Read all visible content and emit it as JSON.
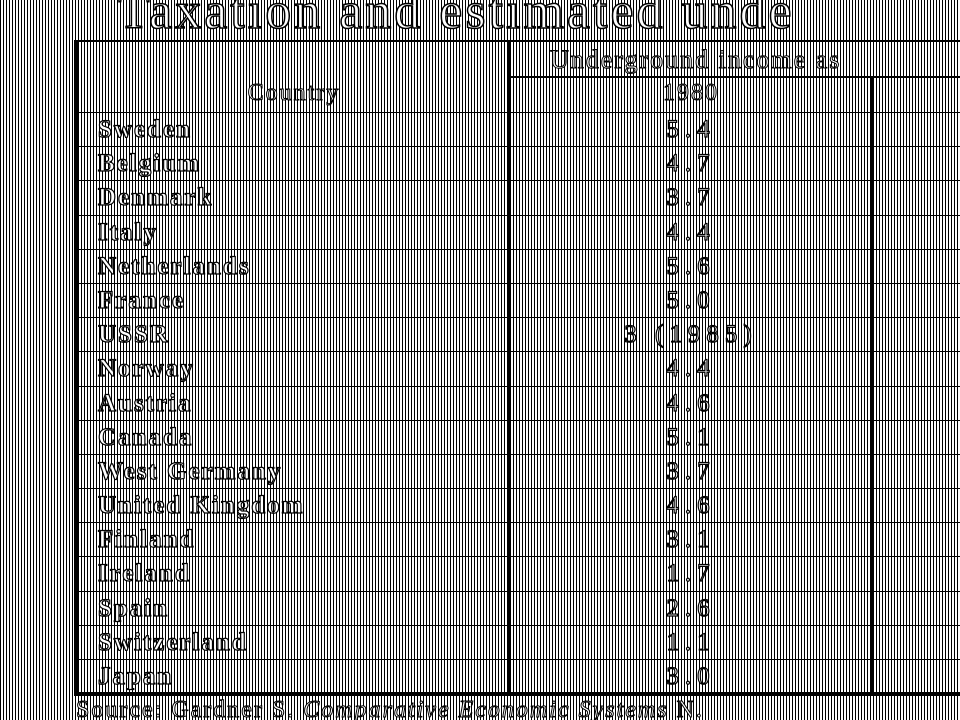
{
  "title": "Taxation and estimated unde",
  "table": {
    "group_header": "Underground income as",
    "headers": {
      "country": "Country",
      "year": "1980"
    },
    "rows": [
      {
        "country": "Sweden",
        "value": "5.4"
      },
      {
        "country": "Belgium",
        "value": "4.7"
      },
      {
        "country": "Denmark",
        "value": "3.7"
      },
      {
        "country": "Italy",
        "value": "4.4"
      },
      {
        "country": "Netherlands",
        "value": "5.6"
      },
      {
        "country": "France",
        "value": "5.0"
      },
      {
        "country": "USSR",
        "value": "3 (1985)"
      },
      {
        "country": "Norway",
        "value": "4.4"
      },
      {
        "country": "Austria",
        "value": "4.6"
      },
      {
        "country": "Canada",
        "value": "5.1"
      },
      {
        "country": "West Germany",
        "value": "3.7"
      },
      {
        "country": "United Kingdom",
        "value": "4.6"
      },
      {
        "country": "Finland",
        "value": "3.1"
      },
      {
        "country": "Ireland",
        "value": "1.7"
      },
      {
        "country": "Spain",
        "value": "2.6"
      },
      {
        "country": "Switzerland",
        "value": "1.1"
      },
      {
        "country": "Japan",
        "value": "3.0"
      }
    ]
  },
  "source": {
    "prefix": "Source: Gardner S.",
    "italic": "Comparative Economic Systems",
    "suffix": "N."
  },
  "colors": {
    "ink": "#000000",
    "paper": "#ffffff"
  }
}
